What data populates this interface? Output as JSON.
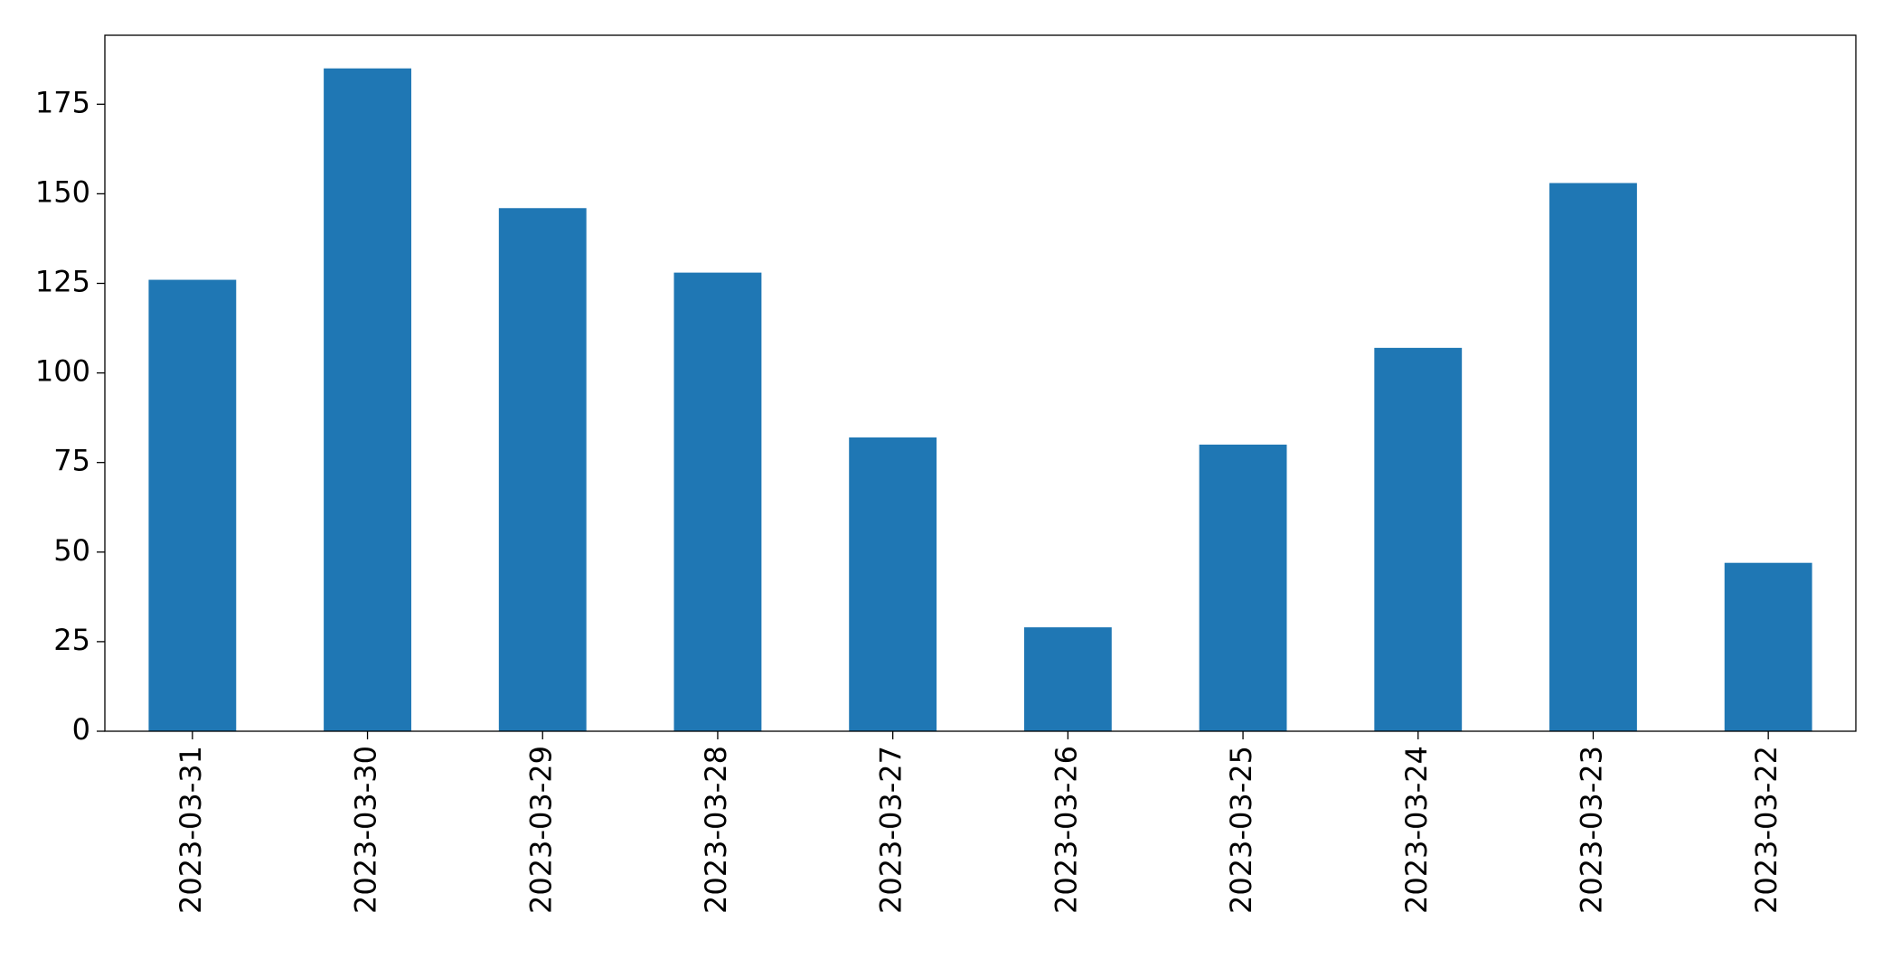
{
  "chart_data": {
    "type": "bar",
    "categories": [
      "2023-03-31",
      "2023-03-30",
      "2023-03-29",
      "2023-03-28",
      "2023-03-27",
      "2023-03-26",
      "2023-03-25",
      "2023-03-24",
      "2023-03-23",
      "2023-03-22"
    ],
    "values": [
      126,
      185,
      146,
      128,
      82,
      29,
      80,
      107,
      153,
      47
    ],
    "color": "#1f77b4",
    "ylim": [
      0,
      194.25
    ],
    "yticks": [
      0,
      25,
      50,
      75,
      100,
      125,
      150,
      175
    ],
    "grid": false
  }
}
